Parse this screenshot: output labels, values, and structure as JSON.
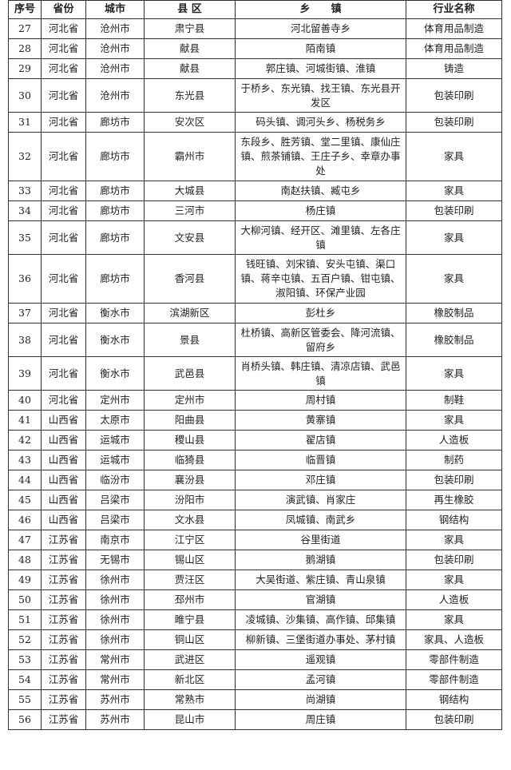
{
  "headers": [
    "序号",
    "省份",
    "城市",
    "县 区",
    "乡　　镇",
    "行业名称"
  ],
  "rows": [
    [
      "27",
      "河北省",
      "沧州市",
      "肃宁县",
      "河北留善寺乡",
      "体育用品制造"
    ],
    [
      "28",
      "河北省",
      "沧州市",
      "献县",
      "陌南镇",
      "体育用品制造"
    ],
    [
      "29",
      "河北省",
      "沧州市",
      "献县",
      "郭庄镇、河城街镇、淮镇",
      "铸造"
    ],
    [
      "30",
      "河北省",
      "沧州市",
      "东光县",
      "于桥乡、东光镇、找王镇、东光县开发区",
      "包装印刷"
    ],
    [
      "31",
      "河北省",
      "廊坊市",
      "安次区",
      "码头镇、调河头乡、杨税务乡",
      "包装印刷"
    ],
    [
      "32",
      "河北省",
      "廊坊市",
      "霸州市",
      "东段乡、胜芳镇、堂二里镇、康仙庄镇、煎茶铺镇、王庄子乡、幸章办事处",
      "家具"
    ],
    [
      "33",
      "河北省",
      "廊坊市",
      "大城县",
      "南赵扶镇、臧屯乡",
      "家具"
    ],
    [
      "34",
      "河北省",
      "廊坊市",
      "三河市",
      "杨庄镇",
      "包装印刷"
    ],
    [
      "35",
      "河北省",
      "廊坊市",
      "文安县",
      "大柳河镇、经开区、滩里镇、左各庄镇",
      "家具"
    ],
    [
      "36",
      "河北省",
      "廊坊市",
      "香河县",
      "钱旺镇、刘宋镇、安头屯镇、渠口镇、蒋辛屯镇、五百户镇、钳屯镇、淑阳镇、环保产业园",
      "家具"
    ],
    [
      "37",
      "河北省",
      "衡水市",
      "滨湖新区",
      "彭杜乡",
      "橡胶制品"
    ],
    [
      "38",
      "河北省",
      "衡水市",
      "景县",
      "杜桥镇、高新区管委会、降河流镇、留府乡",
      "橡胶制品"
    ],
    [
      "39",
      "河北省",
      "衡水市",
      "武邑县",
      "肖桥头镇、韩庄镇、清凉店镇、武邑镇",
      "家具"
    ],
    [
      "40",
      "河北省",
      "定州市",
      "定州市",
      "周村镇",
      "制鞋"
    ],
    [
      "41",
      "山西省",
      "太原市",
      "阳曲县",
      "黄寨镇",
      "家具"
    ],
    [
      "42",
      "山西省",
      "运城市",
      "稷山县",
      "翟店镇",
      "人造板"
    ],
    [
      "43",
      "山西省",
      "运城市",
      "临猗县",
      "临晋镇",
      "制药"
    ],
    [
      "44",
      "山西省",
      "临汾市",
      "襄汾县",
      "邓庄镇",
      "包装印刷"
    ],
    [
      "45",
      "山西省",
      "吕梁市",
      "汾阳市",
      "演武镇、肖家庄",
      "再生橡胶"
    ],
    [
      "46",
      "山西省",
      "吕梁市",
      "文水县",
      "凤城镇、南武乡",
      "钢结构"
    ],
    [
      "47",
      "江苏省",
      "南京市",
      "江宁区",
      "谷里街道",
      "家具"
    ],
    [
      "48",
      "江苏省",
      "无锡市",
      "锡山区",
      "鹅湖镇",
      "包装印刷"
    ],
    [
      "49",
      "江苏省",
      "徐州市",
      "贾汪区",
      "大吴街道、紫庄镇、青山泉镇",
      "家具"
    ],
    [
      "50",
      "江苏省",
      "徐州市",
      "邳州市",
      "官湖镇",
      "人造板"
    ],
    [
      "51",
      "江苏省",
      "徐州市",
      "睢宁县",
      "凌城镇、沙集镇、高作镇、邱集镇",
      "家具"
    ],
    [
      "52",
      "江苏省",
      "徐州市",
      "铜山区",
      "柳新镇、三堡街道办事处、茅村镇",
      "家具、人造板"
    ],
    [
      "53",
      "江苏省",
      "常州市",
      "武进区",
      "遥观镇",
      "零部件制造"
    ],
    [
      "54",
      "江苏省",
      "常州市",
      "新北区",
      "孟河镇",
      "零部件制造"
    ],
    [
      "55",
      "江苏省",
      "苏州市",
      "常熟市",
      "尚湖镇",
      "钢结构"
    ],
    [
      "56",
      "江苏省",
      "苏州市",
      "昆山市",
      "周庄镇",
      "包装印刷"
    ]
  ]
}
